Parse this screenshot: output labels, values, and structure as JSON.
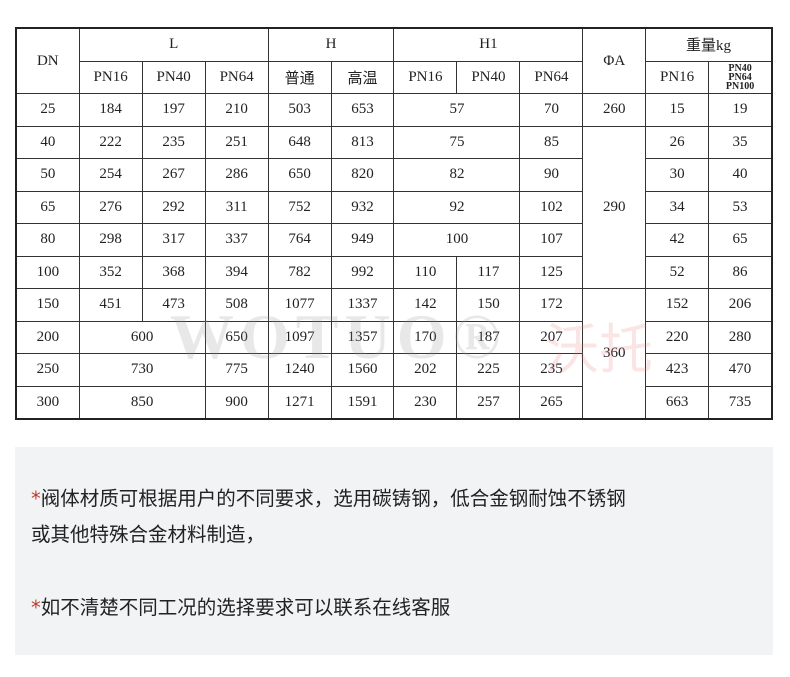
{
  "table": {
    "h_dn": "DN",
    "h_l": "L",
    "h_h": "H",
    "h_h1": "H1",
    "h_phia": "ΦA",
    "h_weight": "重量kg",
    "sub": [
      "PN16",
      "PN40",
      "PN64",
      "普通",
      "高温",
      "PN16",
      "PN40",
      "PN64",
      "PN16",
      "PN40\nPN64\nPN100"
    ],
    "rows": [
      {
        "dn": "25",
        "l": [
          "184",
          "197",
          "210"
        ],
        "h": [
          "503",
          "653"
        ],
        "h1": [
          "57",
          "70"
        ],
        "phia": "260",
        "w": [
          "15",
          "19"
        ]
      },
      {
        "dn": "40",
        "l": [
          "222",
          "235",
          "251"
        ],
        "h": [
          "648",
          "813"
        ],
        "h1": [
          "75",
          "85"
        ],
        "phia": "290",
        "w": [
          "26",
          "35"
        ]
      },
      {
        "dn": "50",
        "l": [
          "254",
          "267",
          "286"
        ],
        "h": [
          "650",
          "820"
        ],
        "h1": [
          "82",
          "90"
        ],
        "w": [
          "30",
          "40"
        ]
      },
      {
        "dn": "65",
        "l": [
          "276",
          "292",
          "311"
        ],
        "h": [
          "752",
          "932"
        ],
        "h1": [
          "92",
          "102"
        ],
        "w": [
          "34",
          "53"
        ]
      },
      {
        "dn": "80",
        "l": [
          "298",
          "317",
          "337"
        ],
        "h": [
          "764",
          "949"
        ],
        "h1": [
          "100",
          "107"
        ],
        "w": [
          "42",
          "65"
        ]
      },
      {
        "dn": "100",
        "l": [
          "352",
          "368",
          "394"
        ],
        "h": [
          "782",
          "992"
        ],
        "h1": [
          "110",
          "117",
          "125"
        ],
        "w": [
          "52",
          "86"
        ]
      },
      {
        "dn": "150",
        "l": [
          "451",
          "473",
          "508"
        ],
        "h": [
          "1077",
          "1337"
        ],
        "h1": [
          "142",
          "150",
          "172"
        ],
        "phia": "360",
        "w": [
          "152",
          "206"
        ]
      },
      {
        "dn": "200",
        "l": [
          "600",
          "650"
        ],
        "h": [
          "1097",
          "1357"
        ],
        "h1": [
          "170",
          "187",
          "207"
        ],
        "w": [
          "220",
          "280"
        ]
      },
      {
        "dn": "250",
        "l": [
          "730",
          "775"
        ],
        "h": [
          "1240",
          "1560"
        ],
        "h1": [
          "202",
          "225",
          "235"
        ],
        "w": [
          "423",
          "470"
        ]
      },
      {
        "dn": "300",
        "l": [
          "850",
          "900"
        ],
        "h": [
          "1271",
          "1591"
        ],
        "h1": [
          "230",
          "257",
          "265"
        ],
        "w": [
          "663",
          "735"
        ]
      }
    ]
  },
  "watermark": {
    "latin": "WOTUO®",
    "cn": "沃托"
  },
  "notes": {
    "star": "*",
    "line1": "阀体材质可根据用户的不同要求，选用碳铸钢，低合金钢耐蚀不锈钢",
    "line2": "或其他特殊合金材料制造，",
    "line3": "如不清楚不同工况的选择要求可以联系在线客服"
  }
}
